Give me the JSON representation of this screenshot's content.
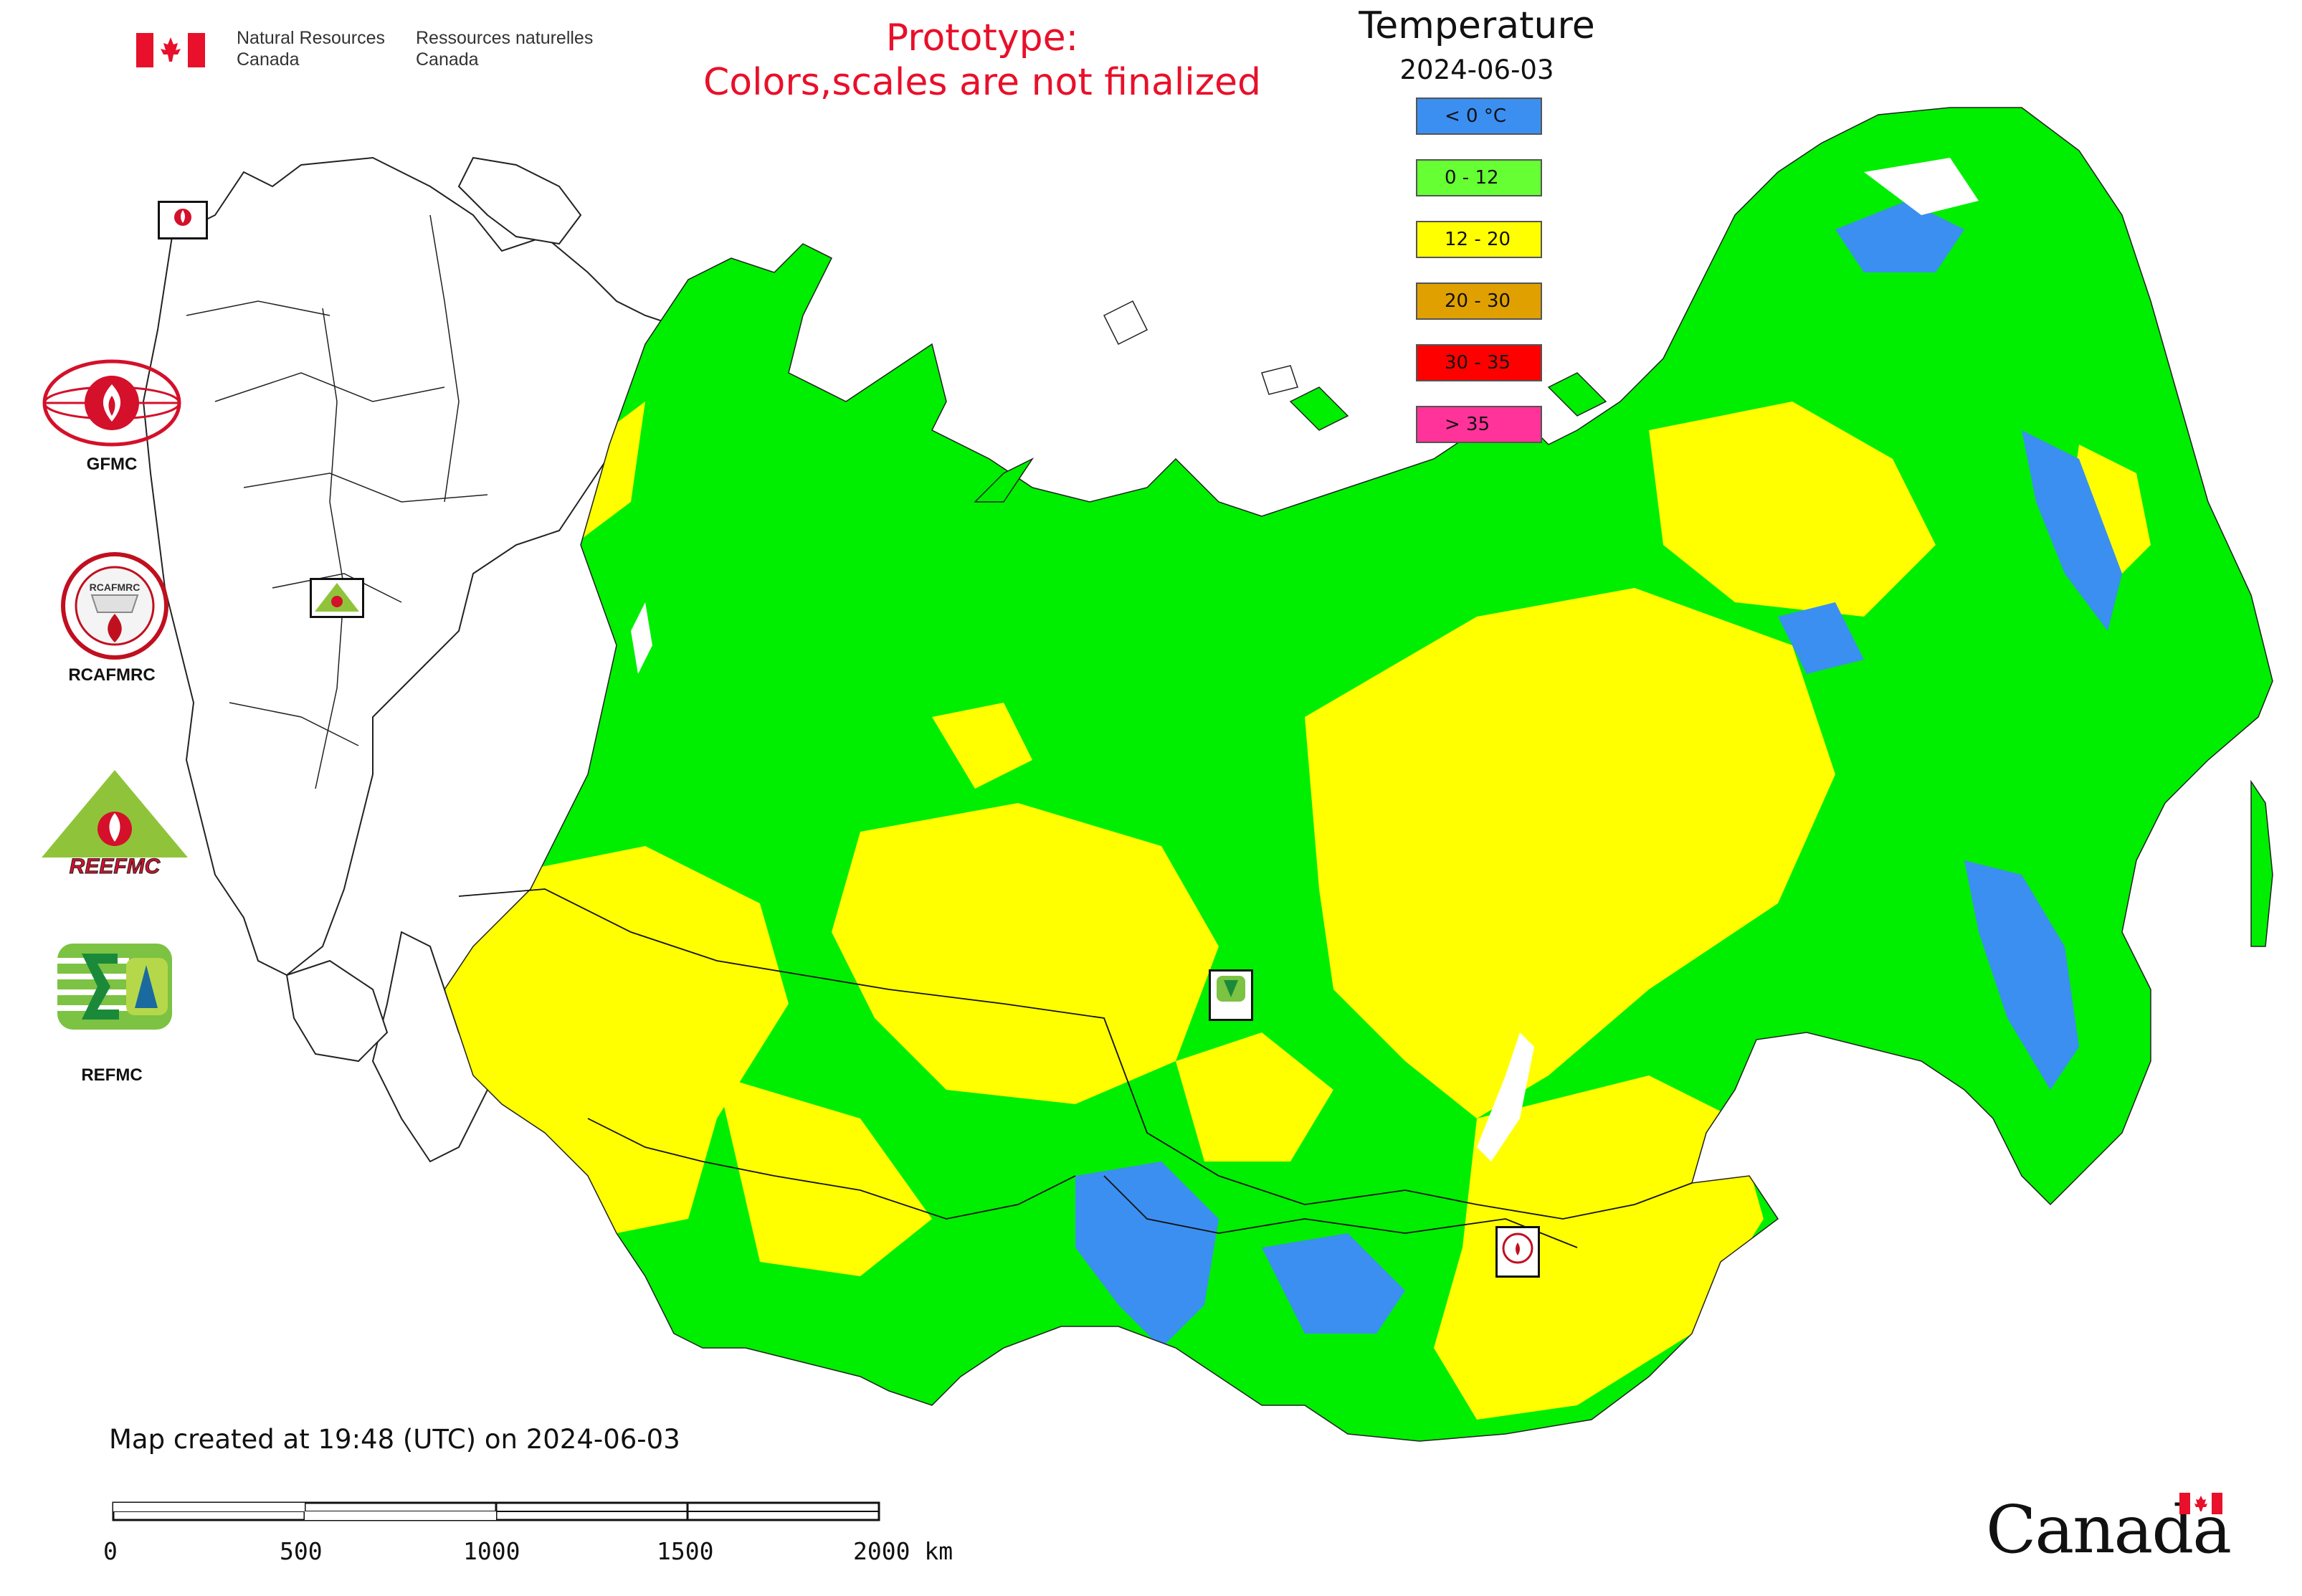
{
  "header": {
    "nrcan_en": [
      "Natural Resources",
      "Canada"
    ],
    "nrcan_fr": [
      "Ressources naturelles",
      "Canada"
    ],
    "prototype_line1": "Prototype:",
    "prototype_line2": "Colors,scales are not finalized"
  },
  "legend": {
    "title": "Temperature",
    "date": "2024-06-03",
    "classes": [
      {
        "label": "< 0 °C",
        "color": "#3b8ff0"
      },
      {
        "label": "0 - 12",
        "color": "#66ff33"
      },
      {
        "label": "12 - 20",
        "color": "#ffff00"
      },
      {
        "label": "20 - 30",
        "color": "#e0a000"
      },
      {
        "label": "30 - 35",
        "color": "#ff0000"
      },
      {
        "label": "> 35",
        "color": "#ff3399"
      }
    ]
  },
  "logos": [
    {
      "label": "GFMC",
      "icon": "gfmc-fire-globe-icon"
    },
    {
      "label": "RCAFMRC",
      "icon": "rcafmrc-seal-icon"
    },
    {
      "label": "REEFMC",
      "icon": "reefmc-triangle-icon"
    },
    {
      "label": "REFMC",
      "icon": "refmc-sigma-icon"
    }
  ],
  "map_markers": [
    {
      "label": "GFMC",
      "icon": "gfmc-marker-icon"
    },
    {
      "label": "REEFMC",
      "icon": "reefmc-marker-icon"
    },
    {
      "label": "REFMC",
      "icon": "refmc-marker-icon"
    },
    {
      "label": "RCAFMRC",
      "icon": "rcafmrc-marker-icon"
    }
  ],
  "footer": {
    "created": "Map created at 19:48 (UTC) on 2024-06-03",
    "scale_labels": [
      "0",
      "500",
      "1000",
      "1500",
      "2000 km"
    ],
    "wordmark": "Canada"
  },
  "colors": {
    "water_background": "#ffffff",
    "outline": "#222222",
    "prototype_text": "#e8102a"
  }
}
